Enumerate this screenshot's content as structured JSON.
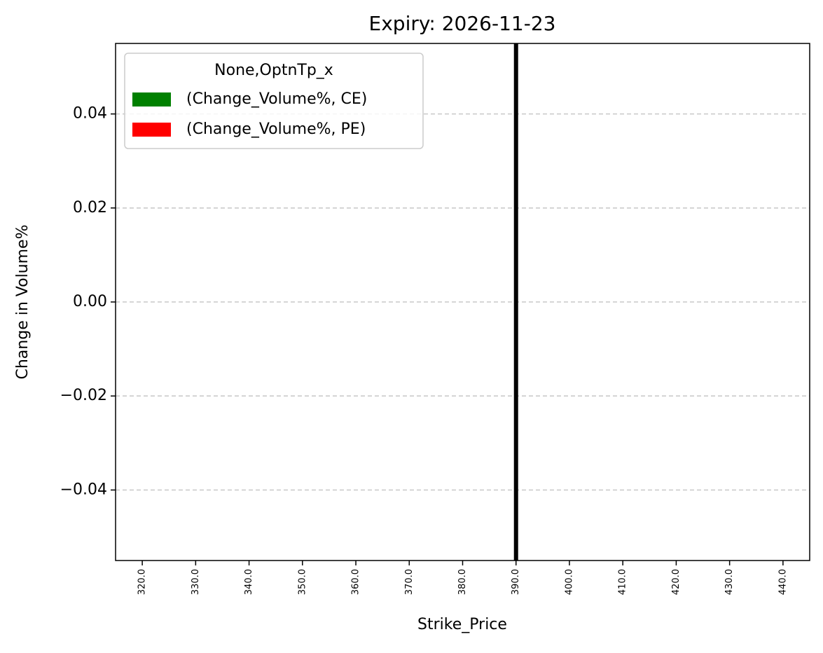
{
  "chart_data": {
    "type": "bar",
    "title": "Expiry: 2026-11-23",
    "x_label": "Strike_Price",
    "y_label": "Change in Volume%",
    "categories": [
      "320.0",
      "330.0",
      "340.0",
      "350.0",
      "360.0",
      "370.0",
      "380.0",
      "390.0",
      "400.0",
      "410.0",
      "420.0",
      "430.0",
      "440.0"
    ],
    "series": [
      {
        "name": "(Change_Volume%, CE)",
        "color": "#008000",
        "values": [
          0,
          0,
          0,
          0,
          0,
          0,
          0,
          0,
          0,
          0,
          0,
          0,
          0
        ]
      },
      {
        "name": "(Change_Volume%, PE)",
        "color": "#ff0000",
        "values": [
          0,
          0,
          0,
          0,
          0,
          0,
          0,
          0,
          0,
          0,
          0,
          0,
          0
        ]
      }
    ],
    "legend_title": "None,OptnTp_x",
    "legend": "upper left",
    "vline_x": "390.0",
    "vline_color": "#000000",
    "ylim": [
      -0.055,
      0.055
    ],
    "yticks": [
      {
        "value": -0.04,
        "label": "−0.04"
      },
      {
        "value": -0.02,
        "label": "−0.02"
      },
      {
        "value": 0,
        "label": "0.00"
      },
      0.02,
      0.04
    ],
    "grid": true
  }
}
